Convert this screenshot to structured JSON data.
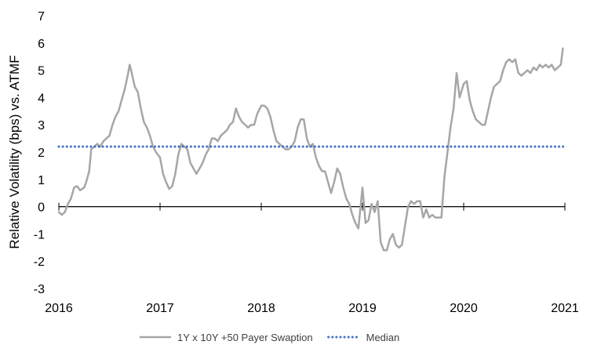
{
  "chart_data": {
    "type": "line",
    "title": "",
    "xlabel": "",
    "ylabel": "Relative Volatility (bps) vs. ATMF",
    "xlim": [
      2016,
      2021
    ],
    "ylim": [
      -3,
      7
    ],
    "x_ticks": [
      "2016",
      "2017",
      "2018",
      "2019",
      "2020",
      "2021"
    ],
    "y_ticks": [
      "-3",
      "-2",
      "-1",
      "0",
      "1",
      "2",
      "3",
      "4",
      "5",
      "6",
      "7"
    ],
    "grid": "horizontal",
    "legend_position": "bottom",
    "series": [
      {
        "name": "1Y x 10Y +50 Payer Swaption",
        "color": "#a6a6a6",
        "style": "solid",
        "points": [
          [
            2016.0,
            -0.2
          ],
          [
            2016.03,
            -0.3
          ],
          [
            2016.06,
            -0.2
          ],
          [
            2016.09,
            0.1
          ],
          [
            2016.12,
            0.3
          ],
          [
            2016.15,
            0.7
          ],
          [
            2016.18,
            0.75
          ],
          [
            2016.21,
            0.6
          ],
          [
            2016.25,
            0.7
          ],
          [
            2016.27,
            0.9
          ],
          [
            2016.3,
            1.3
          ],
          [
            2016.32,
            2.1
          ],
          [
            2016.35,
            2.2
          ],
          [
            2016.38,
            2.3
          ],
          [
            2016.41,
            2.2
          ],
          [
            2016.44,
            2.4
          ],
          [
            2016.47,
            2.5
          ],
          [
            2016.5,
            2.6
          ],
          [
            2016.53,
            3.0
          ],
          [
            2016.56,
            3.3
          ],
          [
            2016.59,
            3.5
          ],
          [
            2016.62,
            3.9
          ],
          [
            2016.65,
            4.3
          ],
          [
            2016.68,
            4.8
          ],
          [
            2016.7,
            5.2
          ],
          [
            2016.72,
            4.9
          ],
          [
            2016.75,
            4.4
          ],
          [
            2016.78,
            4.2
          ],
          [
            2016.81,
            3.6
          ],
          [
            2016.84,
            3.1
          ],
          [
            2016.87,
            2.9
          ],
          [
            2016.9,
            2.6
          ],
          [
            2016.93,
            2.2
          ],
          [
            2016.96,
            2.0
          ],
          [
            2017.0,
            1.8
          ],
          [
            2017.03,
            1.2
          ],
          [
            2017.06,
            0.9
          ],
          [
            2017.09,
            0.65
          ],
          [
            2017.12,
            0.75
          ],
          [
            2017.15,
            1.2
          ],
          [
            2017.18,
            1.9
          ],
          [
            2017.21,
            2.3
          ],
          [
            2017.24,
            2.2
          ],
          [
            2017.27,
            2.1
          ],
          [
            2017.3,
            1.6
          ],
          [
            2017.33,
            1.4
          ],
          [
            2017.36,
            1.2
          ],
          [
            2017.39,
            1.4
          ],
          [
            2017.42,
            1.6
          ],
          [
            2017.45,
            1.9
          ],
          [
            2017.48,
            2.1
          ],
          [
            2017.51,
            2.5
          ],
          [
            2017.54,
            2.5
          ],
          [
            2017.57,
            2.4
          ],
          [
            2017.6,
            2.6
          ],
          [
            2017.63,
            2.7
          ],
          [
            2017.66,
            2.8
          ],
          [
            2017.69,
            3.0
          ],
          [
            2017.72,
            3.1
          ],
          [
            2017.75,
            3.6
          ],
          [
            2017.78,
            3.3
          ],
          [
            2017.81,
            3.1
          ],
          [
            2017.84,
            3.0
          ],
          [
            2017.87,
            2.9
          ],
          [
            2017.9,
            3.0
          ],
          [
            2017.93,
            3.0
          ],
          [
            2017.96,
            3.4
          ],
          [
            2018.0,
            3.7
          ],
          [
            2018.03,
            3.7
          ],
          [
            2018.06,
            3.6
          ],
          [
            2018.09,
            3.3
          ],
          [
            2018.12,
            2.8
          ],
          [
            2018.15,
            2.4
          ],
          [
            2018.18,
            2.3
          ],
          [
            2018.21,
            2.2
          ],
          [
            2018.24,
            2.1
          ],
          [
            2018.27,
            2.1
          ],
          [
            2018.3,
            2.2
          ],
          [
            2018.33,
            2.4
          ],
          [
            2018.36,
            2.9
          ],
          [
            2018.39,
            3.2
          ],
          [
            2018.42,
            3.2
          ],
          [
            2018.45,
            2.5
          ],
          [
            2018.48,
            2.2
          ],
          [
            2018.51,
            2.3
          ],
          [
            2018.54,
            1.8
          ],
          [
            2018.57,
            1.5
          ],
          [
            2018.6,
            1.3
          ],
          [
            2018.63,
            1.3
          ],
          [
            2018.66,
            0.9
          ],
          [
            2018.69,
            0.5
          ],
          [
            2018.72,
            0.9
          ],
          [
            2018.75,
            1.4
          ],
          [
            2018.78,
            1.2
          ],
          [
            2018.81,
            0.7
          ],
          [
            2018.84,
            0.3
          ],
          [
            2018.87,
            0.1
          ],
          [
            2018.9,
            -0.3
          ],
          [
            2018.93,
            -0.6
          ],
          [
            2018.96,
            -0.8
          ],
          [
            2019.0,
            0.7
          ],
          [
            2019.03,
            -0.6
          ],
          [
            2019.06,
            -0.5
          ],
          [
            2019.09,
            0.1
          ],
          [
            2019.12,
            -0.2
          ],
          [
            2019.15,
            0.2
          ],
          [
            2019.18,
            -1.3
          ],
          [
            2019.21,
            -1.6
          ],
          [
            2019.24,
            -1.6
          ],
          [
            2019.27,
            -1.2
          ],
          [
            2019.3,
            -1.0
          ],
          [
            2019.33,
            -1.4
          ],
          [
            2019.36,
            -1.5
          ],
          [
            2019.39,
            -1.4
          ],
          [
            2019.42,
            -0.7
          ],
          [
            2019.45,
            0.0
          ],
          [
            2019.48,
            0.2
          ],
          [
            2019.51,
            0.1
          ],
          [
            2019.54,
            0.2
          ],
          [
            2019.57,
            0.2
          ],
          [
            2019.6,
            -0.4
          ],
          [
            2019.63,
            -0.1
          ],
          [
            2019.66,
            -0.4
          ],
          [
            2019.69,
            -0.3
          ],
          [
            2019.72,
            -0.4
          ],
          [
            2019.75,
            -0.4
          ],
          [
            2019.78,
            -0.4
          ],
          [
            2019.81,
            1.1
          ],
          [
            2019.84,
            2.0
          ],
          [
            2019.87,
            2.9
          ],
          [
            2019.9,
            3.6
          ],
          [
            2019.93,
            4.9
          ],
          [
            2019.96,
            4.0
          ],
          [
            2020.0,
            4.5
          ],
          [
            2020.03,
            4.6
          ],
          [
            2020.06,
            3.9
          ],
          [
            2020.09,
            3.5
          ],
          [
            2020.12,
            3.2
          ],
          [
            2020.15,
            3.1
          ],
          [
            2020.18,
            3.0
          ],
          [
            2020.21,
            3.0
          ],
          [
            2020.24,
            3.5
          ],
          [
            2020.27,
            4.0
          ],
          [
            2020.3,
            4.4
          ],
          [
            2020.33,
            4.5
          ],
          [
            2020.36,
            4.6
          ],
          [
            2020.39,
            5.0
          ],
          [
            2020.42,
            5.3
          ],
          [
            2020.45,
            5.4
          ],
          [
            2020.48,
            5.3
          ],
          [
            2020.51,
            5.4
          ],
          [
            2020.54,
            4.9
          ],
          [
            2020.57,
            4.8
          ],
          [
            2020.6,
            4.9
          ],
          [
            2020.63,
            5.0
          ],
          [
            2020.66,
            4.9
          ],
          [
            2020.69,
            5.1
          ],
          [
            2020.72,
            5.0
          ],
          [
            2020.75,
            5.2
          ],
          [
            2020.78,
            5.1
          ],
          [
            2020.81,
            5.2
          ],
          [
            2020.84,
            5.1
          ],
          [
            2020.87,
            5.2
          ],
          [
            2020.9,
            5.0
          ],
          [
            2020.93,
            5.1
          ],
          [
            2020.96,
            5.2
          ],
          [
            2020.98,
            5.8
          ]
        ]
      },
      {
        "name": "Median",
        "color": "#4472c4",
        "style": "dotted",
        "points": [
          [
            2016.0,
            2.2
          ],
          [
            2021.0,
            2.2
          ]
        ]
      }
    ]
  }
}
